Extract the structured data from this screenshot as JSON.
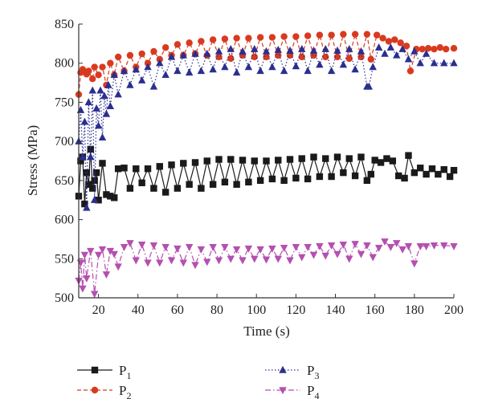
{
  "chart_data": {
    "type": "line",
    "xlabel": "Time (s)",
    "ylabel": "Stress (MPa)",
    "xlim": [
      10,
      200
    ],
    "ylim": [
      500,
      850
    ],
    "x_ticks": [
      20,
      40,
      60,
      80,
      100,
      120,
      140,
      160,
      180,
      200
    ],
    "y_ticks": [
      500,
      550,
      600,
      650,
      700,
      750,
      800,
      850
    ],
    "legend_position": "bottom",
    "series": [
      {
        "name": "P1",
        "name_main": "P",
        "name_sub": "1",
        "color": "#1a1a1a",
        "marker": "square",
        "line_style": "solid",
        "x": [
          10,
          11,
          12,
          13,
          14,
          15,
          16,
          17,
          18,
          19,
          20,
          22,
          24,
          26,
          28,
          30,
          33,
          36,
          39,
          42,
          45,
          48,
          51,
          54,
          57,
          60,
          63,
          66,
          69,
          72,
          75,
          78,
          81,
          84,
          87,
          90,
          93,
          96,
          99,
          102,
          105,
          108,
          111,
          114,
          117,
          120,
          123,
          126,
          129,
          132,
          135,
          138,
          141,
          144,
          147,
          150,
          153,
          156,
          158,
          160,
          163,
          166,
          169,
          172,
          175,
          177,
          180,
          183,
          186,
          189,
          192,
          195,
          198,
          200
        ],
        "y": [
          630,
          675,
          680,
          620,
          660,
          645,
          690,
          640,
          650,
          660,
          625,
          672,
          632,
          630,
          628,
          665,
          666,
          640,
          665,
          647,
          665,
          640,
          668,
          635,
          670,
          640,
          672,
          645,
          673,
          640,
          675,
          645,
          677,
          648,
          677,
          645,
          676,
          648,
          675,
          650,
          675,
          652,
          676,
          650,
          677,
          653,
          678,
          652,
          680,
          655,
          678,
          655,
          680,
          660,
          678,
          656,
          680,
          650,
          658,
          676,
          673,
          678,
          675,
          656,
          653,
          682,
          660,
          666,
          658,
          665,
          658,
          664,
          655,
          663
        ]
      },
      {
        "name": "P2",
        "name_main": "P",
        "name_sub": "2",
        "color": "#d93a1f",
        "marker": "circle",
        "line_style": "dashed",
        "x": [
          10,
          11,
          12,
          14,
          15,
          17,
          18,
          20,
          22,
          24,
          26,
          28,
          30,
          33,
          36,
          39,
          42,
          45,
          48,
          51,
          54,
          57,
          60,
          63,
          66,
          69,
          72,
          75,
          78,
          81,
          84,
          87,
          90,
          93,
          96,
          99,
          102,
          105,
          108,
          111,
          114,
          117,
          120,
          123,
          126,
          129,
          132,
          135,
          138,
          141,
          144,
          147,
          150,
          153,
          156,
          158,
          161,
          164,
          167,
          170,
          173,
          176,
          178,
          181,
          184,
          187,
          190,
          193,
          196,
          200
        ],
        "y": [
          760,
          788,
          792,
          786,
          790,
          780,
          795,
          785,
          795,
          772,
          800,
          785,
          808,
          790,
          810,
          795,
          812,
          800,
          815,
          805,
          820,
          810,
          824,
          810,
          826,
          812,
          828,
          810,
          830,
          808,
          831,
          806,
          832,
          810,
          832,
          808,
          833,
          808,
          833,
          810,
          834,
          810,
          834,
          808,
          835,
          810,
          836,
          808,
          836,
          808,
          837,
          806,
          837,
          808,
          837,
          805,
          836,
          832,
          828,
          830,
          826,
          822,
          790,
          818,
          818,
          819,
          818,
          820,
          818,
          819
        ]
      },
      {
        "name": "P3",
        "name_main": "P",
        "name_sub": "3",
        "color": "#2a2f8f",
        "marker": "triangle-up",
        "line_style": "dotted",
        "x": [
          10,
          11,
          12,
          13,
          14,
          15,
          16,
          17,
          18,
          19,
          20,
          21,
          22,
          23,
          24,
          25,
          26,
          28,
          30,
          33,
          36,
          39,
          42,
          45,
          48,
          51,
          54,
          57,
          60,
          63,
          66,
          69,
          72,
          75,
          78,
          81,
          84,
          87,
          90,
          93,
          96,
          99,
          102,
          105,
          108,
          111,
          114,
          117,
          120,
          123,
          126,
          129,
          132,
          135,
          138,
          141,
          144,
          147,
          150,
          153,
          156,
          157,
          159,
          162,
          165,
          168,
          171,
          174,
          177,
          180,
          183,
          186,
          190,
          195,
          200
        ],
        "y": [
          700,
          740,
          680,
          725,
          615,
          750,
          680,
          765,
          625,
          742,
          720,
          765,
          705,
          758,
          735,
          772,
          745,
          785,
          760,
          790,
          772,
          792,
          778,
          795,
          770,
          800,
          785,
          808,
          790,
          810,
          788,
          812,
          790,
          812,
          792,
          815,
          795,
          818,
          788,
          815,
          795,
          818,
          790,
          815,
          795,
          817,
          790,
          816,
          796,
          818,
          790,
          816,
          798,
          818,
          790,
          816,
          798,
          818,
          792,
          815,
          770,
          770,
          795,
          820,
          812,
          820,
          810,
          818,
          805,
          815,
          800,
          812,
          800,
          800,
          800
        ]
      },
      {
        "name": "P4",
        "name_main": "P",
        "name_sub": "4",
        "color": "#b54fb0",
        "marker": "triangle-down",
        "line_style": "dashdot",
        "x": [
          10,
          11,
          12,
          13,
          14,
          16,
          18,
          20,
          22,
          24,
          26,
          28,
          30,
          33,
          36,
          39,
          42,
          45,
          48,
          51,
          54,
          57,
          60,
          63,
          66,
          69,
          72,
          75,
          78,
          81,
          84,
          87,
          90,
          93,
          96,
          99,
          102,
          105,
          108,
          111,
          114,
          117,
          120,
          123,
          126,
          129,
          132,
          135,
          138,
          141,
          144,
          147,
          150,
          153,
          156,
          159,
          162,
          165,
          168,
          171,
          174,
          177,
          180,
          183,
          186,
          190,
          195,
          200
        ],
        "y": [
          522,
          545,
          512,
          555,
          525,
          560,
          505,
          555,
          562,
          530,
          560,
          556,
          540,
          565,
          570,
          548,
          568,
          545,
          567,
          545,
          565,
          548,
          563,
          545,
          565,
          542,
          562,
          546,
          565,
          548,
          565,
          550,
          562,
          548,
          563,
          550,
          562,
          549,
          563,
          550,
          564,
          548,
          565,
          552,
          565,
          555,
          566,
          554,
          567,
          556,
          568,
          550,
          569,
          556,
          567,
          552,
          564,
          572,
          565,
          570,
          562,
          566,
          544,
          566,
          566,
          567,
          567,
          566
        ]
      }
    ]
  }
}
